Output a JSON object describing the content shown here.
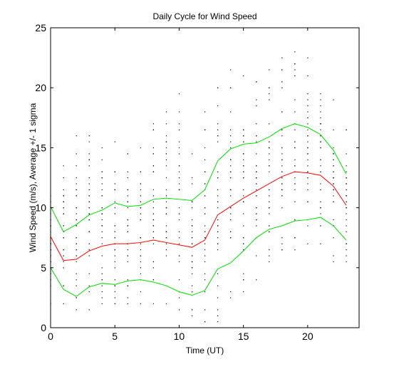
{
  "chart_data": {
    "type": "line",
    "title": "Daily Cycle for Wind Speed",
    "xlabel": "Time (UT)",
    "ylabel": "Wind Speed (m/s), Average +/- 1 sigma",
    "xlim": [
      0,
      24
    ],
    "ylim": [
      0,
      25
    ],
    "xticks": [
      0,
      5,
      10,
      15,
      20
    ],
    "yticks": [
      0,
      5,
      10,
      15,
      20,
      25
    ],
    "grid": false,
    "x": [
      0,
      1,
      2,
      3,
      4,
      5,
      6,
      7,
      8,
      9,
      10,
      11,
      12,
      13,
      14,
      15,
      16,
      17,
      18,
      19,
      20,
      21,
      22,
      23
    ],
    "series": [
      {
        "role": "average",
        "color": "#ff0000",
        "values": [
          7.6,
          5.6,
          5.7,
          6.4,
          6.8,
          7.0,
          7.0,
          7.1,
          7.3,
          7.1,
          6.9,
          6.7,
          7.3,
          9.4,
          10.1,
          10.8,
          11.4,
          12.0,
          12.6,
          13.0,
          12.9,
          12.7,
          11.8,
          10.2
        ]
      },
      {
        "role": "average + 1 sigma",
        "color": "#00dd00",
        "values": [
          10.1,
          8.0,
          8.6,
          9.4,
          9.8,
          10.4,
          10.1,
          10.2,
          10.7,
          10.8,
          10.7,
          10.6,
          11.5,
          13.9,
          14.9,
          15.3,
          15.4,
          15.9,
          16.6,
          17.0,
          16.7,
          16.1,
          14.8,
          12.8
        ]
      },
      {
        "role": "average - 1 sigma",
        "color": "#00dd00",
        "values": [
          5.0,
          3.2,
          2.6,
          3.4,
          3.7,
          3.6,
          3.9,
          4.0,
          3.8,
          3.5,
          3.0,
          2.7,
          3.1,
          4.9,
          5.4,
          6.4,
          7.5,
          8.2,
          8.5,
          8.9,
          9.0,
          9.2,
          8.5,
          7.3
        ]
      }
    ],
    "scatter": {
      "color": "#000000",
      "description_hours_min_max": [
        [
          0,
          2.0,
          11.2
        ],
        [
          1,
          1.9,
          13.4
        ],
        [
          2,
          1.5,
          16.2
        ],
        [
          3,
          1.7,
          16.0
        ],
        [
          4,
          1.8,
          14.8
        ],
        [
          5,
          2.0,
          15.4
        ],
        [
          6,
          2.0,
          14.6
        ],
        [
          7,
          2.0,
          14.9
        ],
        [
          8,
          2.0,
          16.5
        ],
        [
          9,
          1.8,
          17.9
        ],
        [
          10,
          1.5,
          19.4
        ],
        [
          11,
          1.3,
          14.6
        ],
        [
          12,
          0.5,
          18.2
        ],
        [
          13,
          0.8,
          19.9
        ],
        [
          14,
          2.6,
          21.6
        ],
        [
          15,
          3.0,
          20.8
        ],
        [
          16,
          4.0,
          20.6
        ],
        [
          17,
          5.5,
          21.4
        ],
        [
          18,
          6.3,
          22.7
        ],
        [
          19,
          6.6,
          23.0
        ],
        [
          20,
          6.9,
          22.5
        ],
        [
          21,
          6.8,
          19.6
        ],
        [
          22,
          5.8,
          18.9
        ],
        [
          23,
          5.7,
          16.6
        ]
      ]
    }
  }
}
